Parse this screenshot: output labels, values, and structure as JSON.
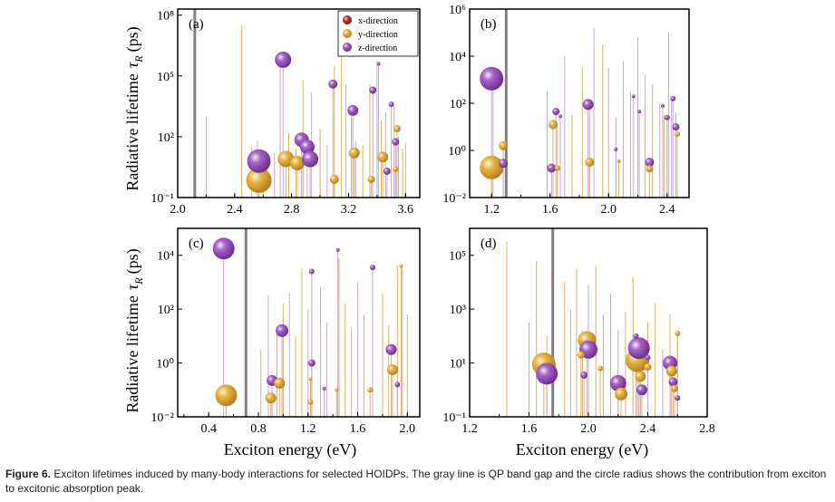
{
  "colors": {
    "x": "#b22a2a",
    "y": "#d9a030",
    "z": "#9a55bb",
    "gap_line": "#808080",
    "line_x": "#c8a0a0",
    "line_y": "#dcb060",
    "line_z": "#c6a8d8"
  },
  "legend": [
    "x-direction",
    "y-direction",
    "z-direction"
  ],
  "ylabel": {
    "main": "Radiative lifetime",
    "symbol": "τ",
    "sub": "R",
    "unit": "(ps)"
  },
  "xlabel": "Exciton energy (eV)",
  "caption": {
    "label": "Figure 6.",
    "text": "Exciton lifetimes induced by many-body interactions for selected HOIDPs. The gray line is QP band gap and the circle radius shows the contribution from exciton to excitonic absorption peak."
  },
  "chart_data": [
    {
      "panel": "(a)",
      "type": "scatter",
      "xlim": [
        2.0,
        3.7
      ],
      "xticks": [
        "2.0",
        "2.4",
        "2.8",
        "3.2",
        "3.6"
      ],
      "xtick_vals": [
        2.0,
        2.4,
        2.8,
        3.2,
        3.6
      ],
      "ylim": [
        0.1,
        200000000
      ],
      "ytick_exp": [
        -1,
        2,
        5,
        8
      ],
      "log": true,
      "gap": 2.12,
      "legend_shown": true,
      "lines": [
        [
          2.2,
          3,
          "y"
        ],
        [
          2.45,
          7.5,
          "y"
        ],
        [
          2.52,
          1.5,
          "z"
        ],
        [
          2.56,
          1.8,
          "z"
        ],
        [
          2.6,
          0.5,
          "y"
        ],
        [
          2.68,
          1.2,
          "z"
        ],
        [
          2.72,
          5.6,
          "z"
        ],
        [
          2.78,
          2.2,
          "y"
        ],
        [
          2.83,
          1.4,
          "y"
        ],
        [
          2.88,
          4.8,
          "y"
        ],
        [
          2.94,
          4.2,
          "z"
        ],
        [
          3.0,
          2.4,
          "y"
        ],
        [
          3.05,
          1.6,
          "z"
        ],
        [
          3.1,
          5.5,
          "y"
        ],
        [
          3.15,
          6.5,
          "y"
        ],
        [
          3.18,
          4.6,
          "z"
        ],
        [
          3.22,
          3.0,
          "y"
        ],
        [
          3.25,
          1.8,
          "z"
        ],
        [
          3.3,
          1.6,
          "y"
        ],
        [
          3.35,
          4.6,
          "y"
        ],
        [
          3.4,
          5.7,
          "z"
        ],
        [
          3.43,
          2.8,
          "y"
        ],
        [
          3.46,
          3.2,
          "z"
        ],
        [
          3.5,
          1.1,
          "y"
        ],
        [
          3.52,
          3.5,
          "z"
        ],
        [
          3.55,
          2.0,
          "y"
        ],
        [
          3.58,
          1.4,
          "y"
        ],
        [
          3.6,
          1.7,
          "y"
        ]
      ],
      "bubbles": [
        [
          2.57,
          -0.15,
          14,
          "y"
        ],
        [
          2.57,
          0.8,
          13,
          "z"
        ],
        [
          2.74,
          5.8,
          9,
          "z"
        ],
        [
          2.76,
          0.9,
          9,
          "y"
        ],
        [
          2.84,
          0.7,
          8,
          "y"
        ],
        [
          2.87,
          1.85,
          8,
          "z"
        ],
        [
          2.91,
          1.5,
          8,
          "z"
        ],
        [
          2.93,
          0.9,
          9,
          "z"
        ],
        [
          3.09,
          4.6,
          5,
          "z"
        ],
        [
          3.1,
          -0.1,
          5,
          "y"
        ],
        [
          3.23,
          3.3,
          6,
          "z"
        ],
        [
          3.24,
          1.2,
          6,
          "y"
        ],
        [
          3.36,
          -0.1,
          4,
          "y"
        ],
        [
          3.37,
          4.3,
          4,
          "z"
        ],
        [
          3.41,
          5.6,
          2,
          "z"
        ],
        [
          3.44,
          1.0,
          6,
          "y"
        ],
        [
          3.47,
          0.3,
          4,
          "z"
        ],
        [
          3.5,
          3.6,
          3,
          "z"
        ],
        [
          3.53,
          0.4,
          3,
          "y"
        ],
        [
          3.53,
          1.75,
          4,
          "z"
        ],
        [
          3.54,
          2.4,
          4,
          "y"
        ]
      ]
    },
    {
      "panel": "(b)",
      "type": "scatter",
      "xlim": [
        1.05,
        2.55
      ],
      "xticks": [
        "1.2",
        "1.6",
        "2.0",
        "2.4"
      ],
      "xtick_vals": [
        1.2,
        1.6,
        2.0,
        2.4
      ],
      "ylim": [
        0.01,
        1000000
      ],
      "ytick_exp": [
        -2,
        0,
        2,
        4,
        6
      ],
      "log": true,
      "gap": 1.3,
      "legend_shown": false,
      "lines": [
        [
          1.21,
          3,
          "z"
        ],
        [
          1.58,
          2.5,
          "y"
        ],
        [
          1.65,
          1.0,
          "y"
        ],
        [
          1.7,
          4.0,
          "z"
        ],
        [
          1.75,
          1.5,
          "y"
        ],
        [
          1.82,
          3.5,
          "y"
        ],
        [
          1.87,
          1.8,
          "z"
        ],
        [
          1.9,
          5.2,
          "z"
        ],
        [
          1.96,
          4.5,
          "y"
        ],
        [
          2.0,
          3.5,
          "y"
        ],
        [
          2.05,
          1.4,
          "z"
        ],
        [
          2.1,
          3.8,
          "y"
        ],
        [
          2.15,
          2.5,
          "y"
        ],
        [
          2.2,
          4.8,
          "z"
        ],
        [
          2.25,
          3.2,
          "y"
        ],
        [
          2.3,
          2.8,
          "y"
        ],
        [
          2.35,
          2.0,
          "z"
        ],
        [
          2.38,
          1.5,
          "y"
        ],
        [
          2.41,
          5.0,
          "y"
        ],
        [
          2.43,
          2.2,
          "z"
        ],
        [
          2.46,
          1.6,
          "y"
        ]
      ],
      "bubbles": [
        [
          1.2,
          3.05,
          13,
          "z"
        ],
        [
          1.2,
          -0.72,
          13,
          "y"
        ],
        [
          1.28,
          0.2,
          5,
          "y"
        ],
        [
          1.28,
          -0.55,
          5,
          "z"
        ],
        [
          1.62,
          1.1,
          5,
          "y"
        ],
        [
          1.61,
          -0.75,
          5,
          "z"
        ],
        [
          1.64,
          1.65,
          4,
          "z"
        ],
        [
          1.65,
          -0.75,
          3,
          "y"
        ],
        [
          1.67,
          1.45,
          2,
          "z"
        ],
        [
          1.86,
          1.95,
          6,
          "z"
        ],
        [
          1.87,
          -0.5,
          5,
          "y"
        ],
        [
          2.05,
          0.05,
          2,
          "z"
        ],
        [
          2.07,
          -0.45,
          2,
          "y"
        ],
        [
          2.21,
          1.65,
          2,
          "z"
        ],
        [
          2.28,
          -0.5,
          5,
          "z"
        ],
        [
          2.28,
          -0.78,
          4,
          "y"
        ],
        [
          2.4,
          1.4,
          3,
          "z"
        ],
        [
          2.44,
          2.2,
          3,
          "z"
        ],
        [
          2.46,
          1.0,
          4,
          "z"
        ],
        [
          2.47,
          0.7,
          3,
          "y"
        ],
        [
          2.17,
          2.3,
          2,
          "z"
        ],
        [
          2.37,
          1.9,
          2,
          "z"
        ]
      ]
    },
    {
      "panel": "(c)",
      "type": "scatter",
      "xlim": [
        0.15,
        2.1
      ],
      "xticks": [
        "0.4",
        "0.8",
        "1.2",
        "1.6",
        "2.0"
      ],
      "xtick_vals": [
        0.4,
        0.8,
        1.2,
        1.6,
        2.0
      ],
      "ylim": [
        0.01,
        100000
      ],
      "ytick_exp": [
        -2,
        0,
        2,
        4
      ],
      "log": true,
      "gap": 0.7,
      "legend_shown": false,
      "lines": [
        [
          0.82,
          0.5,
          "y"
        ],
        [
          0.88,
          2.5,
          "z"
        ],
        [
          0.95,
          1.2,
          "y"
        ],
        [
          1.0,
          2.2,
          "y"
        ],
        [
          1.05,
          2.6,
          "z"
        ],
        [
          1.1,
          1.0,
          "y"
        ],
        [
          1.15,
          3.5,
          "y"
        ],
        [
          1.2,
          2.0,
          "z"
        ],
        [
          1.3,
          2.8,
          "y"
        ],
        [
          1.35,
          1.5,
          "z"
        ],
        [
          1.45,
          3.9,
          "y"
        ],
        [
          1.5,
          2.2,
          "y"
        ],
        [
          1.55,
          1.3,
          "y"
        ],
        [
          1.6,
          3.0,
          "z"
        ],
        [
          1.65,
          1.8,
          "y"
        ],
        [
          1.8,
          2.6,
          "y"
        ],
        [
          1.85,
          1.4,
          "y"
        ],
        [
          1.92,
          3.6,
          "y"
        ],
        [
          1.96,
          3.5,
          "z"
        ],
        [
          2.0,
          1.8,
          "y"
        ]
      ],
      "bubbles": [
        [
          0.52,
          4.25,
          12,
          "z"
        ],
        [
          0.54,
          -1.2,
          12,
          "y"
        ],
        [
          0.9,
          -1.3,
          6,
          "y"
        ],
        [
          0.91,
          -0.65,
          6,
          "z"
        ],
        [
          0.97,
          -0.75,
          6,
          "y"
        ],
        [
          0.99,
          1.2,
          7,
          "z"
        ],
        [
          1.22,
          -1.45,
          3,
          "y"
        ],
        [
          1.23,
          0.0,
          4,
          "z"
        ],
        [
          1.22,
          -0.6,
          2,
          "y"
        ],
        [
          1.23,
          3.4,
          3,
          "z"
        ],
        [
          1.33,
          -0.95,
          2,
          "z"
        ],
        [
          1.43,
          -1.0,
          2,
          "y"
        ],
        [
          1.44,
          4.2,
          2,
          "z"
        ],
        [
          1.7,
          -1.0,
          3,
          "y"
        ],
        [
          1.72,
          3.55,
          3,
          "z"
        ],
        [
          1.87,
          0.5,
          6,
          "z"
        ],
        [
          1.88,
          -0.25,
          6,
          "y"
        ],
        [
          1.92,
          -0.8,
          3,
          "z"
        ],
        [
          1.95,
          3.6,
          2,
          "y"
        ]
      ]
    },
    {
      "panel": "(d)",
      "type": "scatter",
      "xlim": [
        1.2,
        2.8
      ],
      "xticks": [
        "1.2",
        "1.6",
        "2.0",
        "2.4",
        "2.8"
      ],
      "xtick_vals": [
        1.2,
        1.6,
        2.0,
        2.4,
        2.8
      ],
      "ylim": [
        0.1,
        1000000
      ],
      "ytick_exp": [
        -1,
        1,
        3,
        5
      ],
      "log": true,
      "gap": 1.76,
      "legend_shown": false,
      "lines": [
        [
          1.45,
          5.5,
          "y"
        ],
        [
          1.6,
          2.5,
          "y"
        ],
        [
          1.65,
          4.8,
          "y"
        ],
        [
          1.72,
          2.0,
          "y"
        ],
        [
          1.84,
          4.0,
          "y"
        ],
        [
          1.88,
          3.0,
          "y"
        ],
        [
          1.92,
          4.5,
          "y"
        ],
        [
          1.96,
          2.2,
          "y"
        ],
        [
          2.0,
          3.9,
          "z"
        ],
        [
          2.05,
          4.6,
          "y"
        ],
        [
          2.1,
          2.8,
          "y"
        ],
        [
          2.15,
          3.6,
          "y"
        ],
        [
          2.2,
          2.2,
          "z"
        ],
        [
          2.25,
          2.9,
          "y"
        ],
        [
          2.3,
          4.2,
          "y"
        ],
        [
          2.35,
          1.8,
          "z"
        ],
        [
          2.4,
          2.5,
          "y"
        ],
        [
          2.45,
          3.2,
          "y"
        ],
        [
          2.5,
          1.5,
          "z"
        ],
        [
          2.55,
          2.8,
          "y"
        ],
        [
          2.6,
          2.0,
          "y"
        ]
      ],
      "bubbles": [
        [
          1.7,
          0.95,
          13,
          "y"
        ],
        [
          1.72,
          0.6,
          12,
          "z"
        ],
        [
          1.99,
          1.85,
          10,
          "y"
        ],
        [
          2.0,
          1.5,
          10,
          "z"
        ],
        [
          1.97,
          0.55,
          4,
          "z"
        ],
        [
          1.95,
          1.3,
          4,
          "y"
        ],
        [
          2.08,
          0.8,
          3,
          "y"
        ],
        [
          2.2,
          0.25,
          9,
          "z"
        ],
        [
          2.22,
          -0.15,
          7,
          "y"
        ],
        [
          2.33,
          1.1,
          13,
          "y"
        ],
        [
          2.34,
          1.55,
          12,
          "z"
        ],
        [
          2.32,
          2.0,
          3,
          "z"
        ],
        [
          2.35,
          0.5,
          6,
          "y"
        ],
        [
          2.36,
          0.0,
          6,
          "z"
        ],
        [
          2.4,
          0.85,
          4,
          "y"
        ],
        [
          2.4,
          1.2,
          3,
          "z"
        ],
        [
          2.55,
          1.0,
          8,
          "z"
        ],
        [
          2.56,
          0.7,
          6,
          "y"
        ],
        [
          2.57,
          0.3,
          5,
          "z"
        ],
        [
          2.58,
          0.05,
          4,
          "y"
        ],
        [
          2.6,
          -0.3,
          3,
          "z"
        ],
        [
          2.6,
          2.1,
          3,
          "y"
        ]
      ]
    }
  ]
}
